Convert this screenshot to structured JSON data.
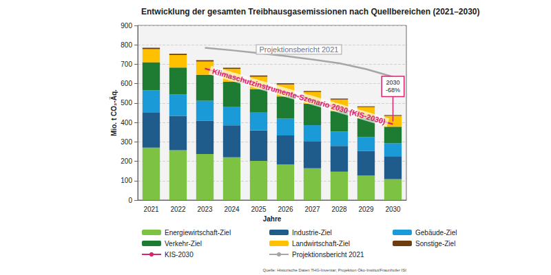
{
  "chart_data": {
    "type": "bar",
    "title": "Entwicklung der gesamten Treibhausgasemissionen nach Quellbereichen (2021–2030)",
    "xlabel": "Jahre",
    "ylabel": "Mio. t CO₂-Äq.",
    "source": "Quelle: Historische Daten THG-Inventar; Projektion Öko-Institut/Fraunhofer ISI",
    "categories": [
      "2021",
      "2022",
      "2023",
      "2024",
      "2025",
      "2026",
      "2027",
      "2028",
      "2029",
      "2030"
    ],
    "series": [
      {
        "name": "Energiewirtschaft-Ziel",
        "color": "#7dc242",
        "values": [
          270,
          257,
          237,
          221,
          202,
          183,
          164,
          146,
          127,
          108
        ]
      },
      {
        "name": "Industrie-Ziel",
        "color": "#1f5c8b",
        "values": [
          180,
          177,
          172,
          164,
          157,
          150,
          140,
          133,
          126,
          118
        ]
      },
      {
        "name": "Gebäude-Ziel",
        "color": "#1a9ad6",
        "values": [
          115,
          110,
          103,
          97,
          92,
          87,
          82,
          74,
          72,
          67
        ]
      },
      {
        "name": "Verkehr-Ziel",
        "color": "#1e7b32",
        "values": [
          145,
          139,
          134,
          128,
          121,
          114,
          110,
          106,
          97,
          85
        ]
      },
      {
        "name": "Landwirtschaft-Ziel",
        "color": "#ffc000",
        "values": [
          68,
          65,
          68,
          66,
          64,
          62,
          61,
          59,
          57,
          56
        ]
      },
      {
        "name": "Sonstige-Ziel",
        "color": "#6b3e0f",
        "values": [
          7,
          6,
          7,
          6,
          6,
          6,
          5,
          5,
          4,
          4
        ]
      },
      {
        "name": "KIS-2030",
        "color": "#d6246e",
        "type": "line",
        "line_style": "solid",
        "values": [
          null,
          null,
          678,
          637,
          596,
          555,
          514,
          473,
          432,
          391
        ]
      },
      {
        "name": "Projektionsbericht 2021",
        "color": "#a6a6a6",
        "type": "line",
        "line_style": "solid",
        "values": [
          null,
          null,
          785,
          772,
          757,
          742,
          725,
          705,
          675,
          635
        ]
      }
    ],
    "annotations": [
      {
        "text": "Projektionsbericht 2021",
        "series": "Projektionsbericht 2021"
      },
      {
        "text": "Klimaschutzinstrumente-Szenario 2030 (KIS-2030)",
        "series": "KIS-2030"
      },
      {
        "lines": [
          "2030",
          "-68%"
        ],
        "series": "KIS-2030"
      }
    ],
    "ylim": [
      0,
      900
    ],
    "yticks": [
      0,
      100,
      200,
      300,
      400,
      500,
      600,
      700,
      800,
      900
    ],
    "stacked": true,
    "grid": true,
    "legend": "bottom"
  }
}
